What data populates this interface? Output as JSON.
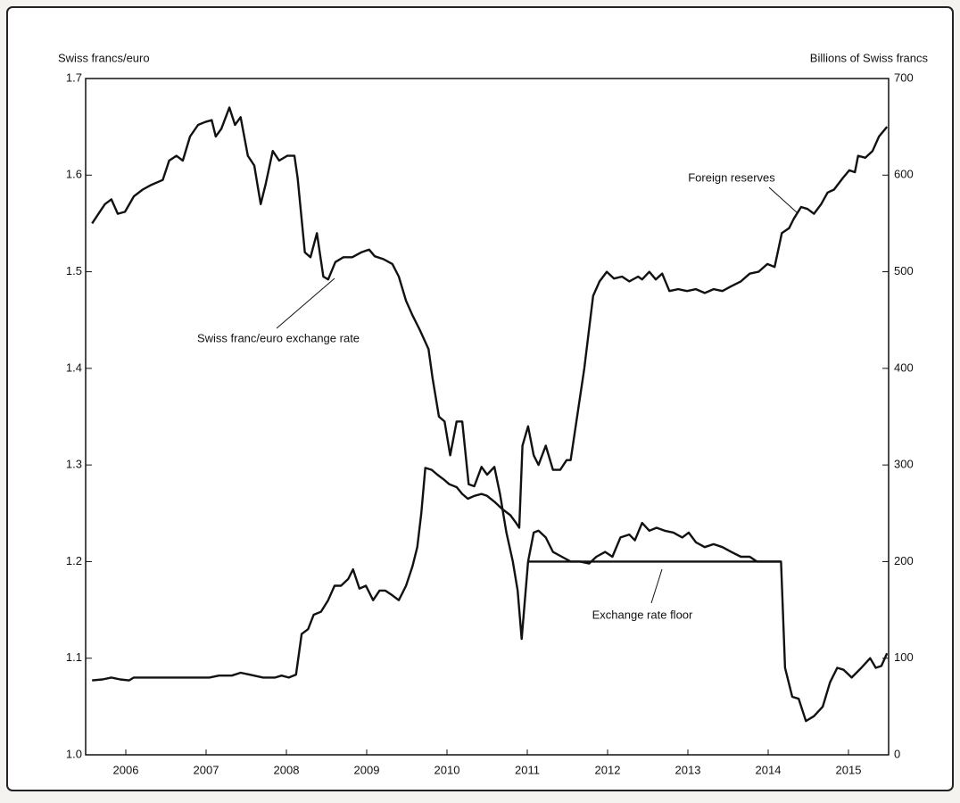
{
  "chart_data": {
    "type": "line",
    "y_label": "Swiss francs/euro",
    "y2_label": "Billions of Swiss francs",
    "xlim": [
      2006,
      2016
    ],
    "xticks": [
      {
        "value": 2006.5,
        "label": "2006"
      },
      {
        "value": 2007.5,
        "label": "2007"
      },
      {
        "value": 2008.5,
        "label": "2008"
      },
      {
        "value": 2009.5,
        "label": "2009"
      },
      {
        "value": 2010.5,
        "label": "2010"
      },
      {
        "value": 2011.5,
        "label": "2011"
      },
      {
        "value": 2012.5,
        "label": "2012"
      },
      {
        "value": 2013.5,
        "label": "2013"
      },
      {
        "value": 2014.5,
        "label": "2014"
      },
      {
        "value": 2015.5,
        "label": "2015"
      }
    ],
    "ylim": [
      1,
      1.7
    ],
    "yticks": [
      {
        "value": 1,
        "label": "1.0"
      },
      1.1,
      1.2,
      1.3,
      1.4,
      1.5,
      1.6,
      1.7
    ],
    "y2lim": [
      0,
      700
    ],
    "y2ticks": [
      0,
      100,
      200,
      300,
      400,
      500,
      600,
      700
    ],
    "annotations": [
      "Swiss franc/euro exchange rate",
      "Foreign reserves",
      "Exchange rate floor"
    ],
    "series": [
      {
        "name": "Swiss franc/euro exchange rate",
        "color": "#111111",
        "axis": "y",
        "x": [
          2006.08,
          2006.16,
          2006.24,
          2006.32,
          2006.4,
          2006.49,
          2006.6,
          2006.71,
          2006.82,
          2006.96,
          2007.04,
          2007.13,
          2007.21,
          2007.3,
          2007.4,
          2007.49,
          2007.57,
          2007.62,
          2007.69,
          2007.79,
          2007.86,
          2007.93,
          2008.02,
          2008.1,
          2008.18,
          2008.24,
          2008.33,
          2008.41,
          2008.51,
          2008.6,
          2008.64,
          2008.73,
          2008.8,
          2008.88,
          2008.96,
          2009.02,
          2009.11,
          2009.21,
          2009.32,
          2009.43,
          2009.53,
          2009.6,
          2009.71,
          2009.82,
          2009.9,
          2009.99,
          2010.07,
          2010.16,
          2010.27,
          2010.32,
          2010.4,
          2010.47,
          2010.54,
          2010.62,
          2010.69,
          2010.77,
          2010.84,
          2010.93,
          2011.0,
          2011.09,
          2011.16,
          2011.24,
          2011.32,
          2011.38,
          2011.43,
          2011.47,
          2011.51,
          2011.58,
          2011.64,
          2011.73,
          2011.82,
          2011.93,
          2012.04,
          2012.16,
          2012.27,
          2012.36,
          2012.47,
          2012.56,
          2012.66,
          2012.77,
          2012.84,
          2012.93,
          2013.02,
          2013.11,
          2013.21,
          2013.32,
          2013.43,
          2013.51,
          2013.6,
          2013.71,
          2013.82,
          2013.93,
          2014.04,
          2014.16,
          2014.27,
          2014.36,
          2014.6,
          2014.66,
          2014.71,
          2014.8,
          2014.88,
          2014.97,
          2015.07,
          2015.18,
          2015.27,
          2015.36,
          2015.44,
          2015.54,
          2015.66,
          2015.77,
          2015.84,
          2015.91,
          2015.98
        ],
        "values": [
          1.55,
          1.56,
          1.57,
          1.575,
          1.56,
          1.562,
          1.578,
          1.585,
          1.59,
          1.595,
          1.615,
          1.62,
          1.615,
          1.64,
          1.652,
          1.655,
          1.657,
          1.64,
          1.648,
          1.67,
          1.652,
          1.66,
          1.62,
          1.61,
          1.57,
          1.59,
          1.625,
          1.615,
          1.62,
          1.62,
          1.597,
          1.52,
          1.515,
          1.54,
          1.495,
          1.492,
          1.51,
          1.515,
          1.515,
          1.52,
          1.523,
          1.516,
          1.513,
          1.508,
          1.495,
          1.47,
          1.455,
          1.44,
          1.42,
          1.39,
          1.35,
          1.345,
          1.31,
          1.345,
          1.345,
          1.28,
          1.278,
          1.298,
          1.29,
          1.298,
          1.27,
          1.23,
          1.2,
          1.17,
          1.12,
          1.16,
          1.2,
          1.23,
          1.232,
          1.225,
          1.21,
          1.205,
          1.2,
          1.2,
          1.198,
          1.205,
          1.21,
          1.205,
          1.225,
          1.228,
          1.222,
          1.24,
          1.232,
          1.235,
          1.232,
          1.23,
          1.225,
          1.23,
          1.22,
          1.215,
          1.218,
          1.215,
          1.21,
          1.205,
          1.205,
          1.2,
          1.2,
          1.2,
          1.09,
          1.06,
          1.058,
          1.035,
          1.04,
          1.05,
          1.075,
          1.09,
          1.088,
          1.08,
          1.09,
          1.1,
          1.09,
          1.092,
          1.105
        ]
      },
      {
        "name": "Foreign reserves",
        "color": "#111111",
        "axis": "y2",
        "x": [
          2006.08,
          2006.21,
          2006.32,
          2006.43,
          2006.54,
          2006.6,
          2006.82,
          2007.04,
          2007.27,
          2007.54,
          2007.66,
          2007.82,
          2007.93,
          2008.04,
          2008.21,
          2008.36,
          2008.44,
          2008.53,
          2008.62,
          2008.69,
          2008.77,
          2008.84,
          2008.93,
          2009.02,
          2009.1,
          2009.18,
          2009.27,
          2009.33,
          2009.41,
          2009.49,
          2009.58,
          2009.66,
          2009.73,
          2009.82,
          2009.9,
          2009.99,
          2010.07,
          2010.13,
          2010.18,
          2010.23,
          2010.31,
          2010.38,
          2010.46,
          2010.53,
          2010.62,
          2010.69,
          2010.76,
          2010.84,
          2010.93,
          2011.0,
          2011.09,
          2011.18,
          2011.29,
          2011.36,
          2011.4,
          2011.44,
          2011.51,
          2011.58,
          2011.64,
          2011.73,
          2011.82,
          2011.91,
          2011.99,
          2012.04,
          2012.21,
          2012.32,
          2012.4,
          2012.49,
          2012.58,
          2012.68,
          2012.77,
          2012.88,
          2012.93,
          2013.02,
          2013.1,
          2013.18,
          2013.27,
          2013.38,
          2013.49,
          2013.6,
          2013.71,
          2013.82,
          2013.93,
          2014.04,
          2014.16,
          2014.27,
          2014.38,
          2014.49,
          2014.58,
          2014.67,
          2014.76,
          2014.82,
          2014.91,
          2014.99,
          2015.07,
          2015.16,
          2015.24,
          2015.32,
          2015.43,
          2015.51,
          2015.58,
          2015.62,
          2015.71,
          2015.8,
          2015.88,
          2015.98
        ],
        "values": [
          77,
          78,
          80,
          78,
          77,
          80,
          80,
          80,
          80,
          80,
          82,
          82,
          85,
          83,
          80,
          80,
          82,
          80,
          83,
          125,
          130,
          145,
          148,
          160,
          175,
          175,
          182,
          192,
          172,
          175,
          160,
          170,
          170,
          165,
          160,
          175,
          195,
          215,
          250,
          297,
          295,
          290,
          285,
          280,
          277,
          270,
          265,
          268,
          270,
          268,
          262,
          255,
          248,
          240,
          235,
          320,
          340,
          310,
          300,
          320,
          295,
          295,
          305,
          305,
          400,
          475,
          490,
          500,
          493,
          495,
          490,
          495,
          492,
          500,
          492,
          498,
          480,
          482,
          480,
          482,
          478,
          482,
          480,
          485,
          490,
          498,
          500,
          508,
          505,
          540,
          545,
          555,
          567,
          565,
          560,
          570,
          582,
          585,
          597,
          605,
          603,
          620,
          618,
          625,
          640,
          650
        ]
      },
      {
        "name": "Exchange rate floor",
        "color": "#111111",
        "axis": "y",
        "x": [
          2011.52,
          2014.66
        ],
        "values": [
          1.2,
          1.2
        ]
      }
    ]
  }
}
